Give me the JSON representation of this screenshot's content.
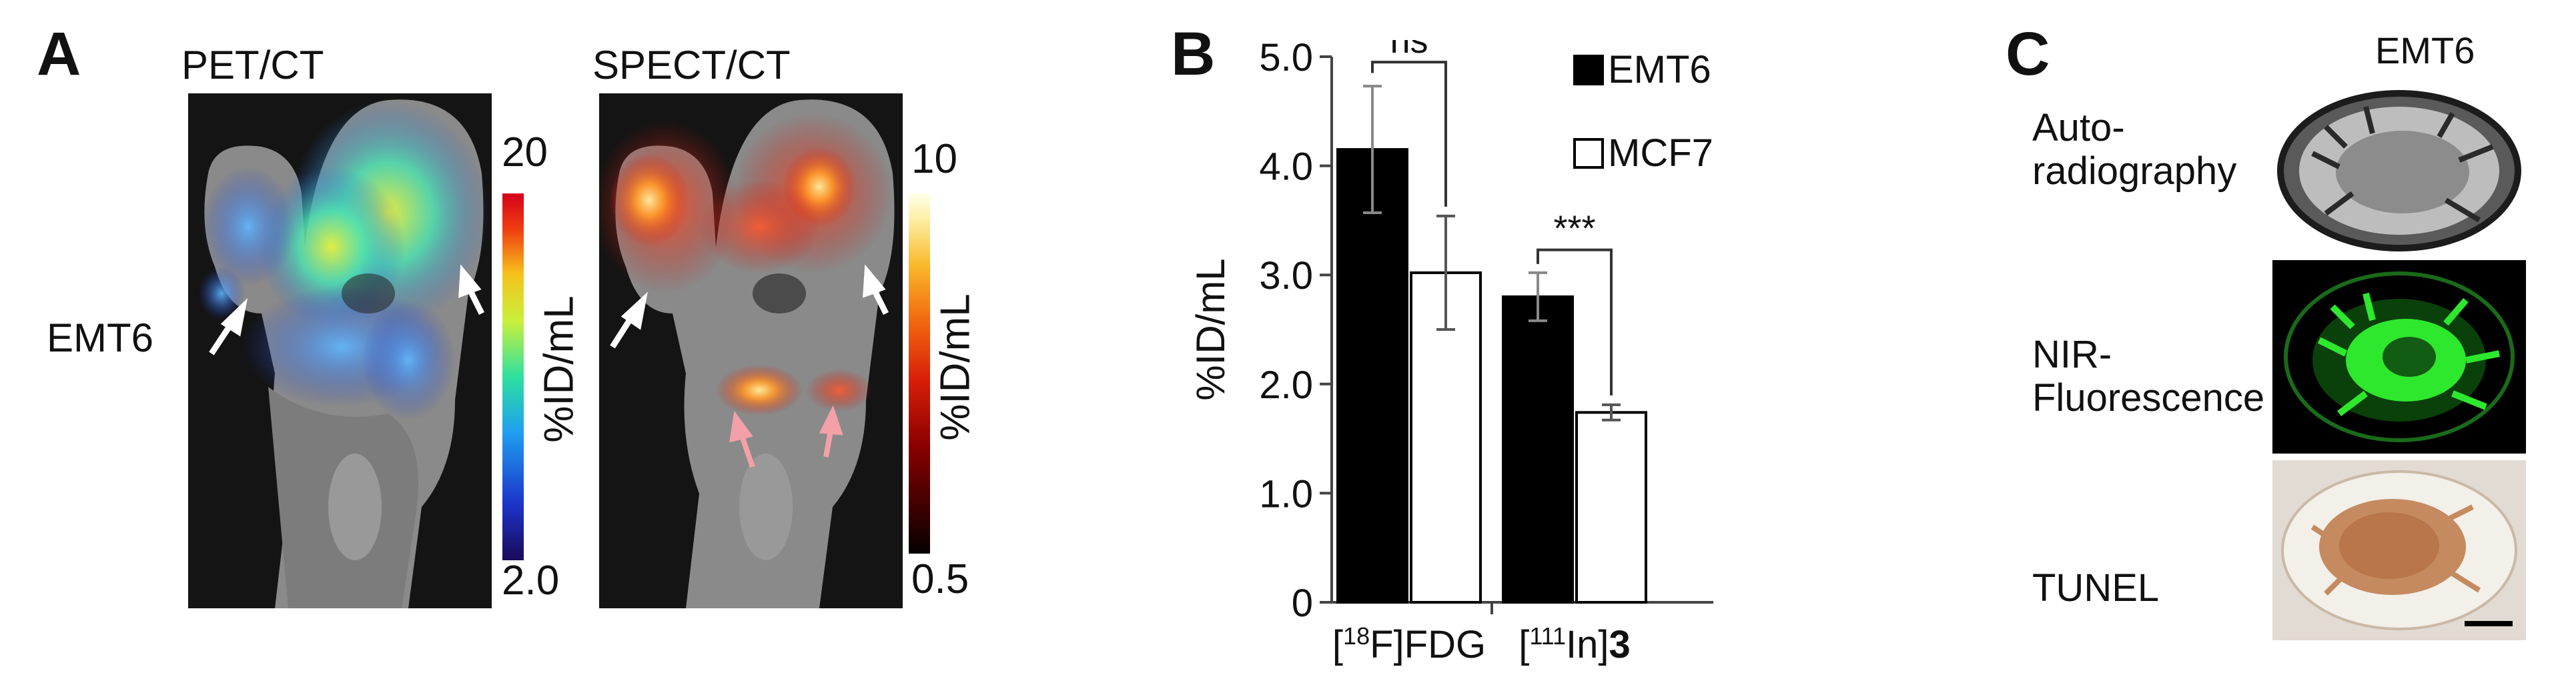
{
  "panel_a": {
    "label": "A",
    "pet_title": "PET/CT",
    "spect_title": "SPECT/CT",
    "row_label": "EMT6",
    "pet_colorbar": {
      "max": "20",
      "min": "2.0",
      "unit": "%ID/mL"
    },
    "spect_colorbar": {
      "max": "10",
      "min": "0.5",
      "unit": "%ID/mL"
    },
    "colors": {
      "arrow_white": "#ffffff",
      "arrow_pink": "#f4a0a8"
    }
  },
  "panel_b": {
    "label": "B",
    "chart_data": {
      "type": "bar",
      "categories": [
        "[18F]FDG",
        "[111In]3"
      ],
      "category_parts": [
        {
          "pre": "[",
          "sup": "18",
          "post": "F]FDG",
          "bold": ""
        },
        {
          "pre": "[",
          "sup": "111",
          "post": "In]",
          "bold": "3"
        }
      ],
      "series": [
        {
          "name": "EMT6",
          "values": [
            4.15,
            2.8
          ],
          "errors": [
            0.58,
            0.22
          ],
          "color": "#000000"
        },
        {
          "name": "MCF7",
          "values": [
            3.02,
            1.74
          ],
          "errors": [
            0.52,
            0.07
          ],
          "color": "#ffffff"
        }
      ],
      "ylabel": "%ID/mL",
      "ylim": [
        0,
        5
      ],
      "yticks": [
        "0",
        "1.0",
        "2.0",
        "3.0",
        "4.0",
        "5.0"
      ],
      "significance": [
        "ns",
        "***"
      ],
      "legend_position": "top-right",
      "grid": false
    }
  },
  "panel_c": {
    "label": "C",
    "column_title": "EMT6",
    "rows": [
      {
        "label_lines": [
          "Auto-",
          "radiography"
        ]
      },
      {
        "label_lines": [
          "NIR-",
          "Fluorescence"
        ]
      },
      {
        "label_lines": [
          "TUNEL"
        ]
      }
    ],
    "colors": {
      "fluorescence": "#2ee82e",
      "tunel_stain": "#b8764a"
    }
  }
}
